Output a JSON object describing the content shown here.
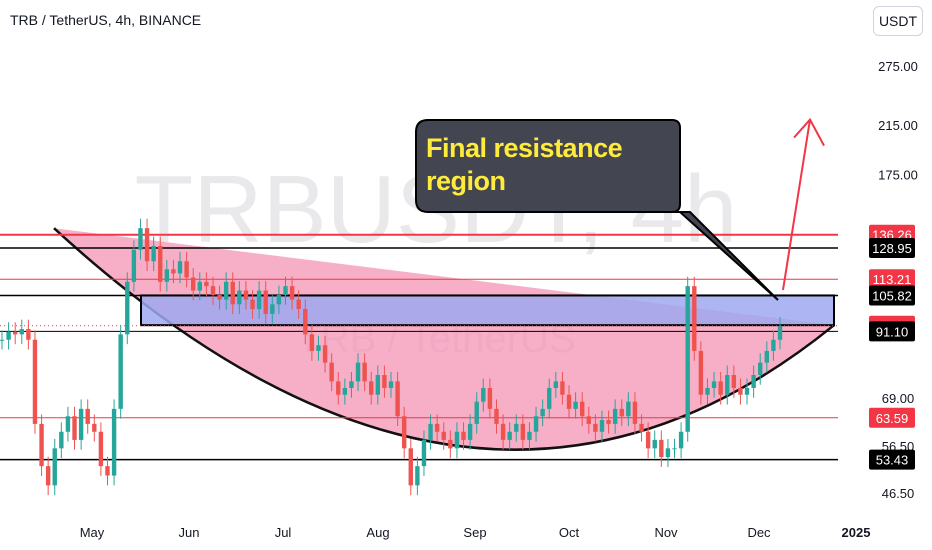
{
  "header": {
    "title": "TRB / TetherUS, 4h, BINANCE",
    "currency": "USDT"
  },
  "watermark": {
    "symbol": "TRBUSDT, 4h",
    "pair": "TRB / TetherUS"
  },
  "annotation": {
    "text": "Final resistance region"
  },
  "colors": {
    "bull": "#26a69a",
    "bear": "#ef5350",
    "cup_fill": "#f48fb1",
    "zone_fill": "#9fa8f0",
    "red_line": "#f23645",
    "callout_bg": "#434651",
    "callout_text": "#ffeb3b"
  },
  "chart_data": {
    "type": "candlestick",
    "y_scale": "log",
    "y_ticks": [
      "275.00",
      "215.00",
      "175.00",
      "69.00",
      "56.50",
      "46.50"
    ],
    "y_tick_values": [
      275,
      215,
      175,
      69,
      56.5,
      46.5
    ],
    "x_ticks": [
      "May",
      "Jun",
      "Jul",
      "Aug",
      "Sep",
      "Oct",
      "Nov",
      "Dec",
      "2025"
    ],
    "price_labels": [
      {
        "value": 136.26,
        "text": "136.26",
        "style": "red"
      },
      {
        "value": 128.95,
        "text": "128.95",
        "style": "black"
      },
      {
        "value": 113.21,
        "text": "113.21",
        "style": "red"
      },
      {
        "value": 105.82,
        "text": "105.82",
        "style": "black"
      },
      {
        "value": 93.27,
        "text": "93.27",
        "style": "red"
      },
      {
        "value": 91.1,
        "text": "91.10",
        "style": "black"
      },
      {
        "value": 63.59,
        "text": "63.59",
        "style": "red"
      },
      {
        "value": 53.43,
        "text": "53.43",
        "style": "black"
      }
    ],
    "horizontal_lines": [
      {
        "value": 136.26,
        "color": "#f23645",
        "width": 2
      },
      {
        "value": 128.95,
        "color": "#000000",
        "width": 1.5
      },
      {
        "value": 113.21,
        "color": "#f23645",
        "width": 1
      },
      {
        "value": 105.82,
        "color": "#000000",
        "width": 1.5
      },
      {
        "value": 91.1,
        "color": "#000000",
        "width": 1
      },
      {
        "value": 63.59,
        "color": "#f23645",
        "width": 1
      },
      {
        "value": 53.43,
        "color": "#000000",
        "width": 1.5
      }
    ],
    "resistance_zone": {
      "low": 93.5,
      "high": 105.82
    },
    "series": [
      {
        "values": [
          88,
          91,
          90,
          92,
          88,
          62,
          52,
          48,
          56,
          60,
          64,
          58,
          66,
          62,
          60,
          52,
          50,
          66,
          90,
          112,
          128,
          140,
          122,
          130,
          112,
          118,
          116,
          122,
          114,
          108,
          112,
          110,
          106,
          104,
          112,
          102,
          108,
          104,
          100,
          108,
          98,
          102,
          106,
          110,
          104,
          100,
          90,
          84,
          86,
          80,
          74,
          70,
          72,
          74,
          80,
          74,
          70,
          76,
          72,
          74,
          64,
          56,
          48,
          52,
          58,
          62,
          60,
          58,
          56,
          60,
          58,
          62,
          68,
          72,
          66,
          62,
          58,
          60,
          62,
          58,
          60,
          64,
          66,
          72,
          74,
          70,
          66,
          68,
          64,
          62,
          60,
          63,
          62,
          66,
          64,
          68,
          62,
          60,
          56,
          58,
          54,
          56,
          56,
          60,
          110,
          84,
          70,
          72,
          74,
          70,
          76,
          72,
          70,
          72,
          76,
          80,
          84,
          88,
          93
        ]
      }
    ],
    "cup_left_top": 140,
    "cup_right_top": 93.5,
    "cup_bottom": 56.5,
    "projection_target": 220
  }
}
